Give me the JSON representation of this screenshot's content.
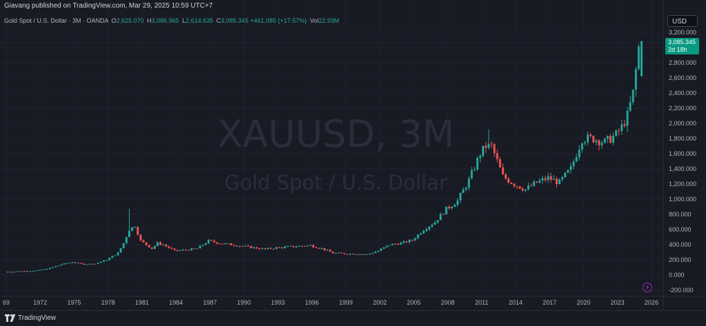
{
  "header": {
    "published": "Giavang published on TradingView.com, Mar 29, 2025 10:59 UTC+7"
  },
  "legend": {
    "symbol": "Gold Spot / U.S. Dollar · 3M · OANDA",
    "open_label": "O",
    "open": "2,625.070",
    "high_label": "H",
    "high": "3,086.965",
    "low_label": "L",
    "low": "2,614.635",
    "close_label": "C",
    "close": "3,085.345",
    "change": "+461.085 (+17.57%)",
    "vol_label": "Vol",
    "vol": "22.93M"
  },
  "currency_button": "USD",
  "price_tag": {
    "price": "3,085.345",
    "countdown": "2d 18h"
  },
  "watermark": {
    "symbol": "XAUUSD, 3M",
    "description": "Gold Spot / U.S. Dollar"
  },
  "footer": {
    "brand": "TradingView"
  },
  "colors": {
    "up": "#26a69a",
    "down": "#ef5350",
    "background": "#181a24",
    "grid": "#1f2230"
  },
  "chart_data": {
    "type": "candlestick",
    "interval": "3M",
    "title": "",
    "ylim": [
      -200,
      3200
    ],
    "y_ticks": [
      "3,200.000",
      "3,000.000",
      "2,800.000",
      "2,600.000",
      "2,400.000",
      "2,200.000",
      "2,000.000",
      "1,800.000",
      "1,600.000",
      "1,400.000",
      "1,200.000",
      "1,000.000",
      "800.000",
      "600.000",
      "400.000",
      "200.000",
      "0.000",
      "-200.000"
    ],
    "x_ticks": [
      "69",
      "1972",
      "1975",
      "1978",
      "1981",
      "1984",
      "1987",
      "1990",
      "1993",
      "1996",
      "1999",
      "2002",
      "2005",
      "2008",
      "2011",
      "2014",
      "2017",
      "2020",
      "2023",
      "2026"
    ],
    "anchors": {
      "x": [
        1969,
        1972,
        1973,
        1974,
        1975,
        1976,
        1977,
        1978,
        1979,
        1979.5,
        1980,
        1980.5,
        1981,
        1982,
        1982.5,
        1983,
        1984,
        1985,
        1986,
        1987,
        1988,
        1990,
        1992,
        1993,
        1996,
        1997,
        1998,
        1999,
        2000,
        2001,
        2002,
        2003,
        2004,
        2005,
        2006,
        2007,
        2008,
        2009,
        2010,
        2011,
        2011.5,
        2012,
        2013,
        2013.5,
        2014,
        2015,
        2016,
        2017,
        2018,
        2019,
        2020,
        2021,
        2022,
        2023,
        2023.5,
        2024,
        2024.5,
        2025
      ],
      "y": [
        40,
        60,
        90,
        140,
        170,
        140,
        150,
        200,
        290,
        420,
        600,
        650,
        450,
        350,
        420,
        400,
        320,
        330,
        350,
        450,
        420,
        380,
        340,
        360,
        390,
        350,
        290,
        280,
        280,
        270,
        320,
        400,
        420,
        460,
        600,
        700,
        870,
        980,
        1250,
        1600,
        1700,
        1700,
        1300,
        1250,
        1200,
        1130,
        1220,
        1280,
        1220,
        1400,
        1800,
        1800,
        1750,
        1850,
        1950,
        2100,
        2400,
        3000
      ]
    }
  }
}
